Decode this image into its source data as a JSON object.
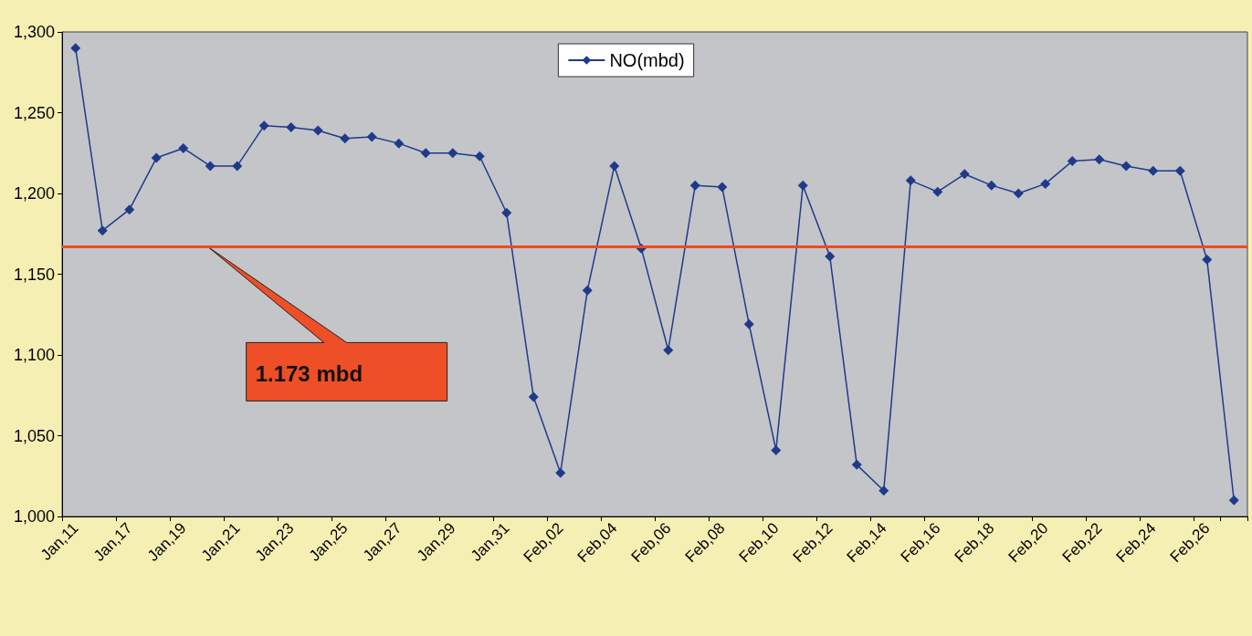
{
  "chart_data": {
    "type": "line",
    "categories": [
      "Jan,11",
      null,
      "Jan,17",
      null,
      "Jan,19",
      null,
      "Jan,21",
      null,
      "Jan,23",
      null,
      "Jan,25",
      null,
      "Jan,27",
      null,
      "Jan,29",
      null,
      "Jan,31",
      null,
      "Feb,02",
      null,
      "Feb,04",
      null,
      "Feb,06",
      null,
      "Feb,08",
      null,
      "Feb,10",
      null,
      "Feb,12",
      null,
      "Feb,14",
      null,
      "Feb,16",
      null,
      "Feb,18",
      null,
      "Feb,20",
      null,
      "Feb,22",
      null,
      "Feb,24",
      null,
      "Feb,26",
      null
    ],
    "series": [
      {
        "name": "NO(mbd)",
        "color": "#1f3a8a",
        "values": [
          1290,
          1177,
          1190,
          1222,
          1228,
          1217,
          1217,
          1242,
          1241,
          1239,
          1234,
          1235,
          1231,
          1225,
          1225,
          1223,
          1188,
          1074,
          1027,
          1140,
          1217,
          1166,
          1103,
          1205,
          1204,
          1119,
          1041,
          1205,
          1161,
          1032,
          1016,
          1208,
          1201,
          1212,
          1205,
          1200,
          1206,
          1220,
          1221,
          1217,
          1214,
          1214,
          1159,
          1010
        ]
      }
    ],
    "ylim": [
      1000,
      1300
    ],
    "yticks": [
      {
        "value": 1000,
        "label": "1,000"
      },
      {
        "value": 1050,
        "label": "1,050"
      },
      {
        "value": 1100,
        "label": "1,100"
      },
      {
        "value": 1150,
        "label": "1,150"
      },
      {
        "value": 1200,
        "label": "1,200"
      },
      {
        "value": 1250,
        "label": "1,250"
      },
      {
        "value": 1300,
        "label": "1,300"
      }
    ],
    "ref_lines": [
      {
        "axis": "y",
        "value": 1167,
        "color": "#ee4a23",
        "line_style": "solid"
      }
    ],
    "annotations": [
      "1.173 mbd"
    ],
    "marker": "diamond",
    "line_style": "solid",
    "legend": "top",
    "grid": false
  }
}
